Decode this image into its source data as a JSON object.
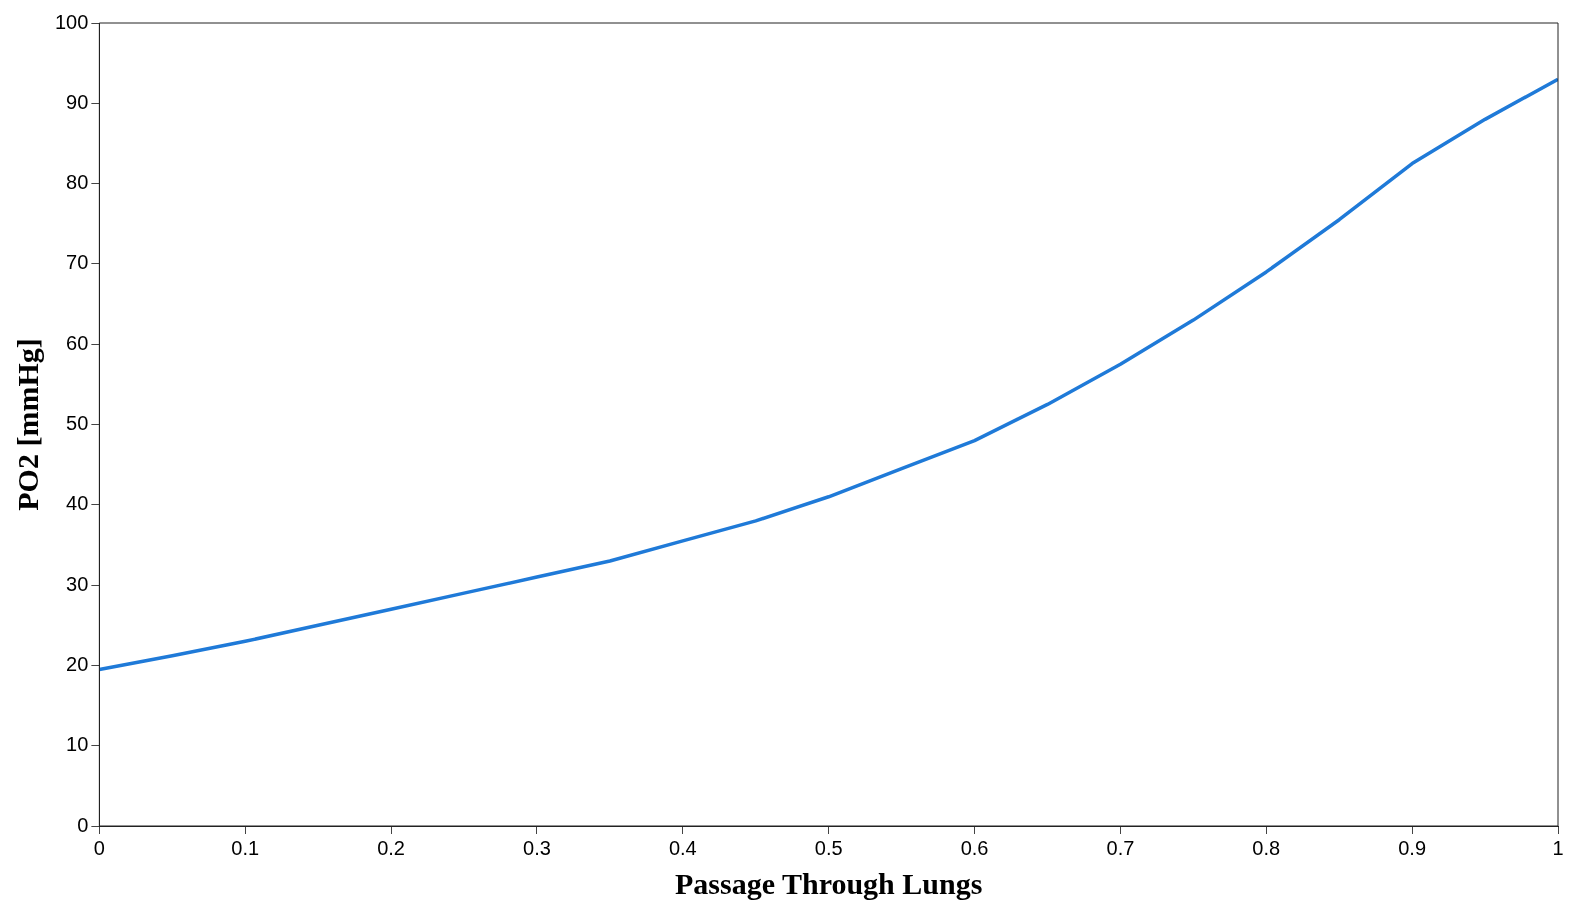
{
  "chart_data": {
    "type": "line",
    "xlabel": "Passage Through Lungs",
    "ylabel": "PO2 [mmHg]",
    "x": [
      0,
      0.05,
      0.1,
      0.15,
      0.2,
      0.25,
      0.3,
      0.35,
      0.4,
      0.45,
      0.5,
      0.55,
      0.6,
      0.65,
      0.7,
      0.75,
      0.8,
      0.85,
      0.9,
      0.95,
      1
    ],
    "series": [
      {
        "color": "#1f7ad8",
        "values": [
          19.5,
          21.2,
          23,
          25,
          27,
          29,
          31,
          33,
          35.5,
          38,
          41,
          44.5,
          48,
          52.5,
          57.5,
          63,
          69,
          75.5,
          82.5,
          88,
          93
        ]
      }
    ],
    "xlim": [
      0,
      1
    ],
    "xticks": [
      0,
      0.1,
      0.2,
      0.3,
      0.4,
      0.5,
      0.6,
      0.7,
      0.8,
      0.9,
      1
    ],
    "ylim": [
      0,
      100
    ],
    "yticks": [
      0,
      10,
      20,
      30,
      40,
      50,
      60,
      70,
      80,
      90,
      100
    ],
    "grid": false,
    "legend": false,
    "marker": "none",
    "line_style": "solid"
  }
}
